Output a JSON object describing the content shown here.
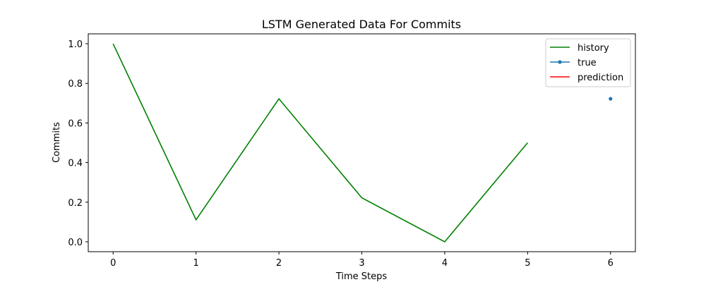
{
  "chart_data": {
    "type": "line",
    "title": "LSTM Generated Data For Commits",
    "xlabel": "Time Steps",
    "ylabel": "Commits",
    "xlim": [
      -0.3,
      6.3
    ],
    "ylim": [
      -0.05,
      1.05
    ],
    "x_ticks": [
      0,
      1,
      2,
      3,
      4,
      5,
      6
    ],
    "y_ticks": [
      0.0,
      0.2,
      0.4,
      0.6,
      0.8,
      1.0
    ],
    "x_tick_labels": [
      "0",
      "1",
      "2",
      "3",
      "4",
      "5",
      "6"
    ],
    "y_tick_labels": [
      "0.0",
      "0.2",
      "0.4",
      "0.6",
      "0.8",
      "1.0"
    ],
    "grid": false,
    "legend_position": "top-right",
    "series": [
      {
        "name": "history",
        "style": "line",
        "color": "#008000",
        "x": [
          0,
          1,
          2,
          3,
          4,
          5
        ],
        "y": [
          1.0,
          0.111,
          0.722,
          0.222,
          0.0,
          0.5
        ]
      },
      {
        "name": "true",
        "style": "marker",
        "color": "#1f77b4",
        "x": [
          6
        ],
        "y": [
          0.722
        ]
      },
      {
        "name": "prediction",
        "style": "line",
        "color": "#ff0000",
        "x": [],
        "y": []
      }
    ]
  }
}
